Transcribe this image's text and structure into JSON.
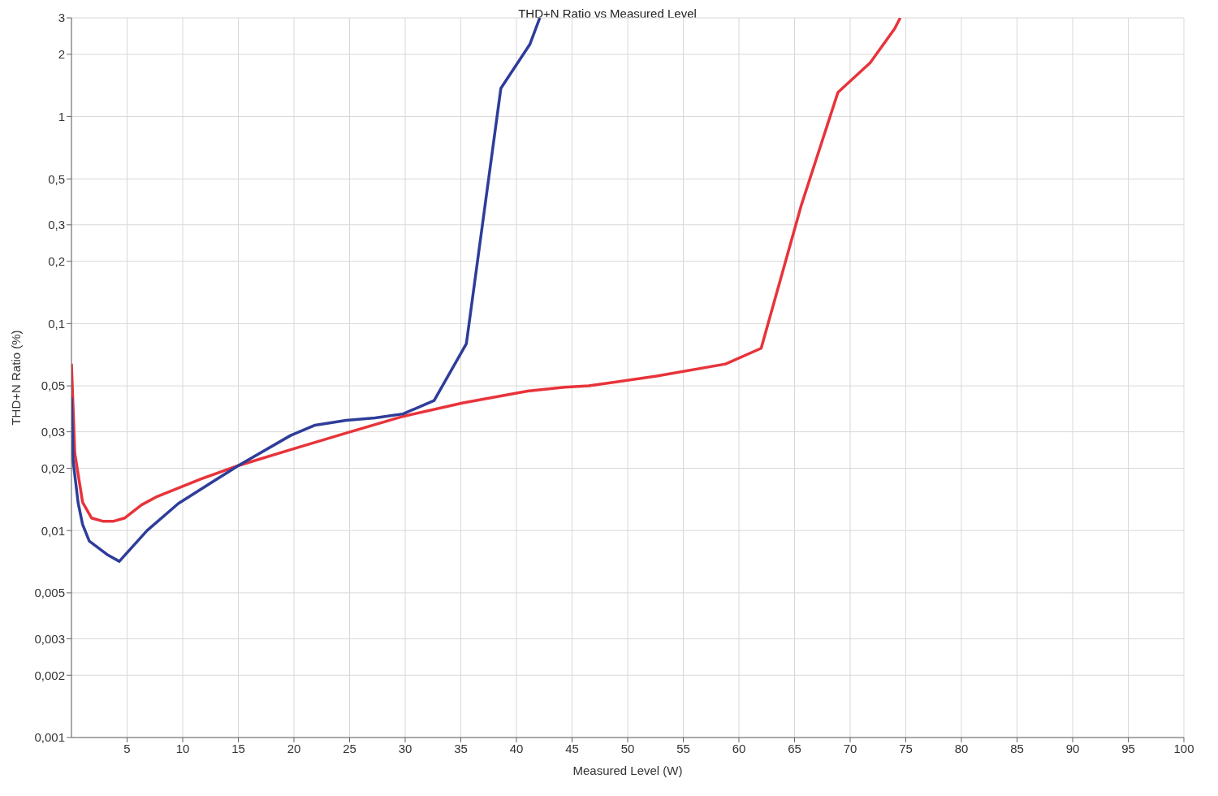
{
  "chart_data": {
    "type": "line",
    "title": "THD+N Ratio vs Measured Level",
    "xlabel": "Measured Level (W)",
    "ylabel": "THD+N Ratio (%)",
    "series": [
      {
        "color": "#2e3d9a",
        "x": [
          0,
          0.15,
          0.6,
          1.0,
          1.6,
          3.3,
          4.3,
          6.8,
          9.6,
          15,
          19.7,
          21.9,
          24.7,
          27.3,
          29.8,
          32.6,
          35.5,
          38.6,
          41.2,
          42.1
        ],
        "values": [
          0.044,
          0.0217,
          0.0136,
          0.0107,
          0.0089,
          0.0076,
          0.0071,
          0.01,
          0.0135,
          0.0206,
          0.0288,
          0.0323,
          0.0341,
          0.035,
          0.0366,
          0.0425,
          0.08,
          1.37,
          2.23,
          3
        ]
      },
      {
        "color": "#e8333a",
        "x": [
          0,
          0.3,
          1.0,
          1.8,
          2.8,
          3.8,
          4.8,
          6.3,
          7.7,
          11.7,
          15,
          19.7,
          24.7,
          29.8,
          35.2,
          41,
          44.3,
          46.5,
          52.6,
          58.8,
          62,
          65.6,
          68.9,
          71.8,
          74,
          74.5
        ],
        "values": [
          0.064,
          0.0237,
          0.0137,
          0.0115,
          0.0111,
          0.0111,
          0.0115,
          0.0133,
          0.0146,
          0.0178,
          0.0206,
          0.0246,
          0.0296,
          0.0356,
          0.0414,
          0.0472,
          0.0493,
          0.05,
          0.0558,
          0.0638,
          0.076,
          0.372,
          1.31,
          1.82,
          2.66,
          3
        ]
      }
    ],
    "xlim": [
      0,
      100
    ],
    "xticks": [
      5,
      10,
      15,
      20,
      25,
      30,
      35,
      40,
      45,
      50,
      55,
      60,
      65,
      70,
      75,
      80,
      85,
      90,
      95,
      100
    ],
    "ylim": [
      0.001,
      3
    ],
    "yticks": [
      {
        "value": 0.001,
        "label": "0,001"
      },
      {
        "value": 0.002,
        "label": "0,002"
      },
      {
        "value": 0.003,
        "label": "0,003"
      },
      {
        "value": 0.005,
        "label": "0,005"
      },
      {
        "value": 0.01,
        "label": "0,01"
      },
      {
        "value": 0.02,
        "label": "0,02"
      },
      {
        "value": 0.03,
        "label": "0,03"
      },
      {
        "value": 0.05,
        "label": "0,05"
      },
      {
        "value": 0.1,
        "label": "0,1"
      },
      {
        "value": 0.2,
        "label": "0,2"
      },
      {
        "value": 0.3,
        "label": "0,3"
      },
      {
        "value": 0.5,
        "label": "0,5"
      },
      1,
      2,
      3
    ],
    "log": true,
    "grid": true,
    "marker": "none",
    "line_style": "solid"
  }
}
